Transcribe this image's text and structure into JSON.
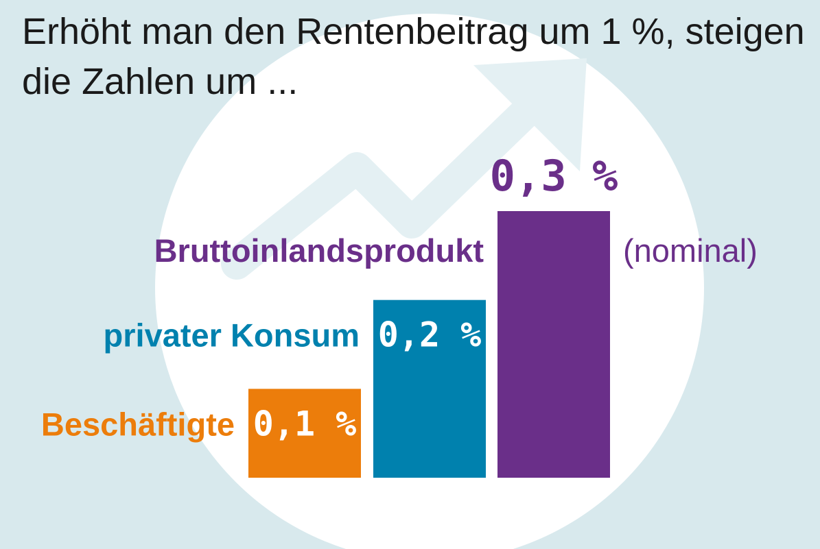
{
  "title_line1": "Erhöht man den Rentenbeitrag um 1 %, steigen",
  "title_line2": "die Zahlen um ...",
  "colors": {
    "background": "#d8e9ed",
    "circle": "#ffffff",
    "arrow": "#e4f0f3",
    "orange": "#ec7d0b",
    "blue": "#0081ae",
    "purple": "#6a2f89",
    "title": "#1a1a1a"
  },
  "chart_data": {
    "type": "bar",
    "title": "Erhöht man den Rentenbeitrag um 1 %, steigen die Zahlen um ...",
    "categories": [
      "Beschäftigte",
      "privater Konsum",
      "Bruttoinlandsprodukt"
    ],
    "category_note": "(nominal)",
    "values": [
      0.1,
      0.2,
      0.3
    ],
    "value_labels": [
      "0,1 %",
      "0,2 %",
      "0,3 %"
    ],
    "unit": "%",
    "colors": [
      "#ec7d0b",
      "#0081ae",
      "#6a2f89"
    ],
    "ylim": [
      0,
      0.3
    ],
    "grid": false
  }
}
